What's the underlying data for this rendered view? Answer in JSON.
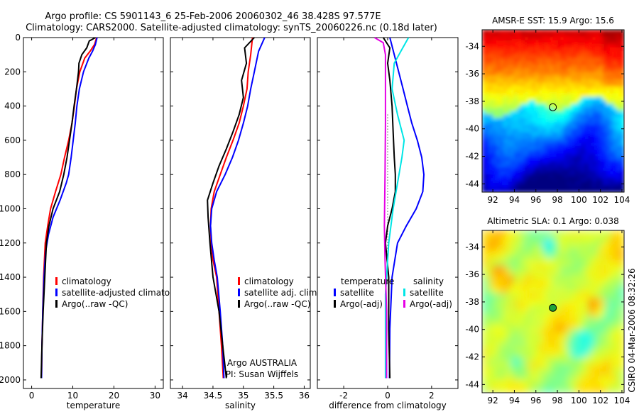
{
  "title": {
    "line1": "Argo profile: CS 5901143_6 25-Feb-2006 20060302_46 38.428S 97.577E",
    "line2": "Climatology: CARS2000. Satellite-adjusted climatology: synTS_20060226.nc (0.18d later)"
  },
  "side_text": "CSIRO 04-Mar-2006 08:32:26",
  "colors": {
    "climatology": "#ff0000",
    "satellite": "#0000ff",
    "argo": "#000000",
    "salinity_satellite": "#00e6e6",
    "salinity_argo_adj": "#e600e6"
  },
  "chart_data": [
    {
      "type": "line",
      "id": "temperature",
      "xlabel": "temperature",
      "xlim": [
        -2,
        32
      ],
      "ylim": [
        0,
        2050
      ],
      "y_reversed": true,
      "xticks": [
        0,
        10,
        20,
        30
      ],
      "yticks": [
        0,
        200,
        400,
        600,
        800,
        1000,
        1200,
        1400,
        1600,
        1800,
        2000
      ],
      "legend": {
        "position": "lower-right",
        "entries": [
          {
            "label": "climatology",
            "color": "#ff0000"
          },
          {
            "label": "satellite-adjusted climatology",
            "color": "#0000ff"
          },
          {
            "label": "Argo(..raw -QC)",
            "color": "#000000"
          }
        ]
      },
      "series": [
        {
          "name": "climatology",
          "color": "#ff0000",
          "x": [
            15.8,
            15.3,
            14.2,
            12.9,
            11.7,
            10.9,
            10.4,
            9.8,
            9.0,
            8.0,
            7.1,
            5.8,
            4.6,
            3.9,
            3.3,
            2.9,
            2.7,
            2.5,
            2.4
          ],
          "y": [
            0,
            40,
            80,
            120,
            200,
            300,
            400,
            500,
            600,
            700,
            800,
            900,
            1000,
            1100,
            1200,
            1400,
            1600,
            1800,
            1990
          ]
        },
        {
          "name": "satellite-adjusted climatology",
          "color": "#0000ff",
          "x": [
            15.9,
            15.5,
            14.8,
            13.9,
            12.6,
            11.6,
            11.0,
            10.6,
            10.1,
            9.6,
            9.0,
            8.4,
            6.9,
            5.2,
            4.1,
            3.4,
            3.0,
            2.7,
            2.5,
            2.4
          ],
          "y": [
            0,
            40,
            80,
            120,
            200,
            300,
            400,
            500,
            600,
            700,
            800,
            850,
            950,
            1050,
            1150,
            1250,
            1400,
            1600,
            1800,
            1990
          ]
        },
        {
          "name": "Argo(..raw -QC)",
          "color": "#000000",
          "x": [
            15.5,
            14.0,
            13.4,
            12.2,
            11.5,
            11.4,
            10.9,
            10.3,
            9.8,
            9.2,
            8.6,
            7.8,
            6.8,
            5.2,
            4.2,
            3.6,
            3.2,
            2.8,
            2.5,
            2.3
          ],
          "y": [
            0,
            20,
            60,
            100,
            150,
            200,
            300,
            400,
            500,
            600,
            700,
            800,
            900,
            1000,
            1100,
            1200,
            1400,
            1600,
            1800,
            1990
          ]
        }
      ]
    },
    {
      "type": "line",
      "id": "salinity",
      "xlabel": "salinity",
      "xlim": [
        33.8,
        36.1
      ],
      "ylim": [
        0,
        2050
      ],
      "y_reversed": true,
      "xticks": [
        34,
        34.5,
        35,
        35.5,
        36
      ],
      "xtick_labels": [
        "34",
        "34.5",
        "35",
        "35.5",
        "36"
      ],
      "legend": {
        "position": "lower-right",
        "entries": [
          {
            "label": "climatology",
            "color": "#ff0000"
          },
          {
            "label": "satellite adj. clim.",
            "color": "#0000ff"
          },
          {
            "label": "Argo(..raw -QC)",
            "color": "#000000"
          }
        ]
      },
      "annotation": {
        "line1": "Argo AUSTRALIA",
        "line2": "PI: Susan Wijffels"
      },
      "series": [
        {
          "name": "climatology",
          "color": "#ff0000",
          "x": [
            35.15,
            35.12,
            35.08,
            35.06,
            35.0,
            34.93,
            34.83,
            34.72,
            34.62,
            34.52,
            34.47,
            34.46,
            34.47,
            34.5,
            34.56,
            34.6,
            34.64,
            34.67
          ],
          "y": [
            0,
            100,
            200,
            300,
            400,
            500,
            600,
            700,
            800,
            900,
            1000,
            1100,
            1200,
            1300,
            1400,
            1600,
            1800,
            1990
          ]
        },
        {
          "name": "satellite adj. clim.",
          "color": "#0000ff",
          "x": [
            35.35,
            35.25,
            35.18,
            35.12,
            35.07,
            35.0,
            34.92,
            34.82,
            34.7,
            34.56,
            34.48,
            34.46,
            34.48,
            34.52,
            34.57,
            34.62,
            34.66,
            34.68
          ],
          "y": [
            0,
            80,
            200,
            300,
            400,
            500,
            600,
            700,
            800,
            900,
            1000,
            1100,
            1200,
            1300,
            1400,
            1600,
            1800,
            1990
          ]
        },
        {
          "name": "Argo(..raw -QC)",
          "color": "#000000",
          "x": [
            35.18,
            35.02,
            35.05,
            34.97,
            35.0,
            34.93,
            34.83,
            34.72,
            34.6,
            34.5,
            34.41,
            34.42,
            34.45,
            34.5,
            34.6,
            34.66,
            34.72
          ],
          "y": [
            0,
            60,
            150,
            250,
            350,
            450,
            550,
            650,
            750,
            850,
            950,
            1050,
            1200,
            1400,
            1600,
            1800,
            1990
          ]
        }
      ]
    },
    {
      "type": "line",
      "id": "difference",
      "xlabel": "difference from climatology",
      "xlim": [
        -3.2,
        3.2
      ],
      "ylim": [
        0,
        2050
      ],
      "y_reversed": true,
      "xticks": [
        -2,
        0,
        2
      ],
      "legend": {
        "position": "lower-right",
        "groups": [
          {
            "header": "temperature",
            "entries": [
              {
                "label": "satellite",
                "color": "#0000ff"
              },
              {
                "label": "Argo(-adj)",
                "color": "#000000"
              }
            ]
          },
          {
            "header": "salinity",
            "entries": [
              {
                "label": "satellite",
                "color": "#00e6e6"
              },
              {
                "label": "Argo(-adj)",
                "color": "#e600e6"
              }
            ]
          }
        ]
      },
      "series": [
        {
          "name": "temperature satellite",
          "color": "#0000ff",
          "x": [
            0.1,
            0.3,
            0.5,
            0.7,
            0.9,
            1.1,
            1.35,
            1.55,
            1.65,
            1.6,
            1.3,
            0.85,
            0.45,
            0.2,
            0.1,
            0.08
          ],
          "y": [
            0,
            100,
            200,
            300,
            400,
            500,
            600,
            700,
            800,
            900,
            1000,
            1100,
            1200,
            1400,
            1700,
            1990
          ]
        },
        {
          "name": "temperature Argo(-adj)",
          "color": "#000000",
          "x": [
            -0.2,
            0.1,
            0.0,
            0.1,
            0.2,
            0.25,
            0.3,
            0.35,
            0.35,
            0.2,
            0.0,
            -0.1,
            0.05,
            0.05,
            0.1
          ],
          "y": [
            0,
            60,
            150,
            250,
            400,
            550,
            700,
            800,
            900,
            1000,
            1100,
            1200,
            1400,
            1700,
            1990
          ]
        },
        {
          "name": "salinity satellite",
          "color": "#00e6e6",
          "x": [
            0.95,
            0.6,
            0.3,
            0.2,
            0.45,
            0.75,
            0.65,
            0.45,
            0.25,
            0.05,
            -0.1,
            -0.1
          ],
          "y": [
            0,
            80,
            150,
            300,
            450,
            600,
            700,
            850,
            1000,
            1200,
            1500,
            1990
          ]
        },
        {
          "name": "salinity Argo(-adj)",
          "color": "#e600e6",
          "x": [
            -0.6,
            -0.2,
            -0.1,
            -0.1,
            -0.1,
            -0.12,
            -0.15,
            -0.12,
            -0.05,
            -0.05
          ],
          "y": [
            0,
            30,
            100,
            250,
            500,
            800,
            1100,
            1300,
            1600,
            1990
          ]
        }
      ]
    },
    {
      "type": "heatmap",
      "id": "sst",
      "title": "AMSR-E SST: 15.9 Argo: 15.6",
      "xlim": [
        91,
        104.2
      ],
      "ylim": [
        -44.6,
        -32.8
      ],
      "xticks": [
        92,
        94,
        96,
        98,
        100,
        102,
        104
      ],
      "yticks": [
        -34,
        -36,
        -38,
        -40,
        -42,
        -44
      ],
      "marker": {
        "lon": 97.577,
        "lat": -38.428
      }
    },
    {
      "type": "heatmap",
      "id": "sla",
      "title": "Altimetric SLA: 0.1 Argo: 0.038",
      "xlim": [
        91,
        104.2
      ],
      "ylim": [
        -44.6,
        -32.8
      ],
      "xticks": [
        92,
        94,
        96,
        98,
        100,
        102,
        104
      ],
      "yticks": [
        -34,
        -36,
        -38,
        -40,
        -42,
        -44
      ],
      "marker": {
        "lon": 97.577,
        "lat": -38.428
      }
    }
  ]
}
